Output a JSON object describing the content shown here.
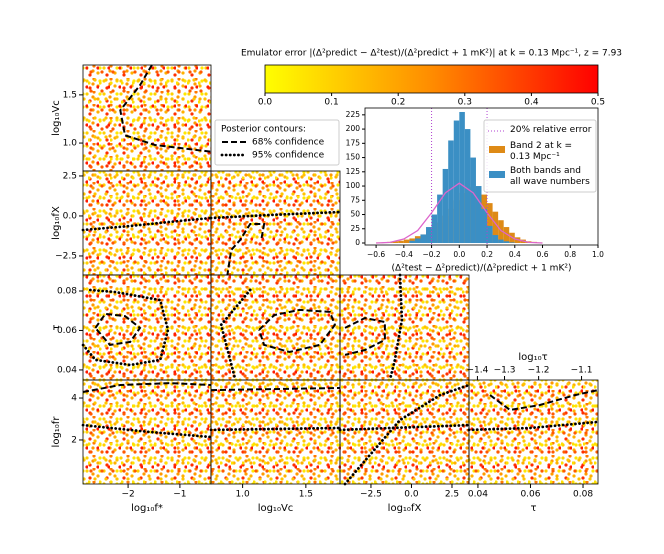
{
  "chart_data": [
    {
      "type": "corner",
      "parameters": [
        {
          "label": "log₁₀f*",
          "xlim": [
            -2.87,
            -0.4
          ],
          "xticks": [
            {
              "value": -2,
              "label": "−2"
            },
            {
              "value": -1,
              "label": "−1"
            }
          ]
        },
        {
          "label": "log₁₀Vc",
          "xlim": [
            0.75,
            1.77
          ],
          "xticks": [
            {
              "value": 1,
              "label": "1.0"
            },
            1.5
          ],
          "ylim": [
            0.71,
            1.81
          ],
          "yticks": [
            {
              "value": 1,
              "label": "1.0"
            },
            1.5
          ]
        },
        {
          "label": "log₁₀fX",
          "xlim": [
            -4.41,
            3.55
          ],
          "xticks": [
            {
              "value": -2.5,
              "label": "−2.5"
            },
            {
              "value": 0,
              "label": "0.0"
            },
            2.5
          ],
          "ylim": [
            -3.69,
            2.81
          ],
          "yticks": [
            {
              "value": -2.5,
              "label": "−2.5"
            },
            {
              "value": 0,
              "label": "0.0"
            },
            2.5
          ]
        },
        {
          "label": "τ",
          "xlim": [
            0.0366,
            0.0857
          ],
          "xticks": [
            0.04,
            0.06,
            0.08
          ],
          "ylim": [
            0.0349,
            0.0881
          ],
          "yticks": [
            0.04,
            0.06,
            0.08
          ]
        },
        {
          "label": "log₁₀fr",
          "ylim": [
            -0.1,
            4.86
          ],
          "yticks": [
            2,
            4
          ]
        }
      ],
      "panels": [
        {
          "x_param": 0,
          "y_param": 1,
          "contours": [
            {
              "style": "dashed",
              "x": [
                -1.54,
                -1.77,
                -2.15,
                -2.06,
                -1.48,
                -0.71,
                -0.4
              ],
              "y": [
                1.81,
                1.6,
                1.34,
                1.08,
                0.98,
                0.93,
                0.91
              ]
            }
          ]
        },
        {
          "x_param": 0,
          "y_param": 2,
          "contours": [
            {
              "style": "dotted",
              "x": [
                -2.87,
                -1.96,
                -1,
                -0.4
              ],
              "y": [
                -0.88,
                -0.63,
                -0.31,
                -0.13
              ]
            }
          ]
        },
        {
          "x_param": 1,
          "y_param": 2,
          "contours": [
            {
              "style": "dotted",
              "x": [
                0.75,
                1.21,
                1.77
              ],
              "y": [
                -0.13,
                0.06,
                0.25
              ]
            },
            {
              "style": "dashed",
              "x": [
                1.15,
                1.17,
                1.06,
                0.98,
                0.91,
                0.88
              ],
              "y": [
                -1.38,
                -0.5,
                -0.5,
                -1.5,
                -2.13,
                -3.69
              ]
            }
          ]
        },
        {
          "x_param": 0,
          "y_param": 3,
          "contours": [
            {
              "style": "dashed",
              "x": [
                -2.63,
                -2.44,
                -2.06,
                -1.77,
                -1.96,
                -2.35,
                -2.63
              ],
              "y": [
                0.0613,
                0.0684,
                0.0673,
                0.0613,
                0.0542,
                0.0527,
                0.0613
              ]
            },
            {
              "style": "dotted",
              "x": [
                -2.73,
                -2.25,
                -1.38,
                -1.23,
                -1.38,
                -1.96,
                -2.63,
                -2.87
              ],
              "y": [
                0.0805,
                0.0795,
                0.0754,
                0.0603,
                0.0451,
                0.0425,
                0.0451,
                0.0527
              ]
            }
          ]
        },
        {
          "x_param": 1,
          "y_param": 3,
          "contours": [
            {
              "style": "dashed",
              "x": [
                1.13,
                1.25,
                1.45,
                1.69,
                1.73,
                1.61,
                1.37,
                1.17,
                1.13
              ],
              "y": [
                0.0603,
                0.0678,
                0.0704,
                0.0694,
                0.0628,
                0.0527,
                0.0491,
                0.0527,
                0.0603
              ]
            },
            {
              "style": "dotted",
              "x": [
                1.06,
                0.83,
                0.94
              ],
              "y": [
                0.0805,
                0.0628,
                0.0356
              ]
            }
          ]
        },
        {
          "x_param": 2,
          "y_param": 3,
          "contours": [
            {
              "style": "dashed",
              "x": [
                -4.1,
                -2.87,
                -1.64,
                -1.64,
                -2.87,
                -4.1
              ],
              "y": [
                0.0613,
                0.0663,
                0.0643,
                0.0552,
                0.0501,
                0.0476
              ]
            },
            {
              "style": "dotted",
              "x": [
                -0.71,
                -0.59,
                -1.02,
                -1.33
              ],
              "y": [
                0.0881,
                0.0653,
                0.0451,
                0.0349
              ]
            }
          ]
        },
        {
          "x_param": 0,
          "y_param": 4,
          "contours": [
            {
              "style": "dotted",
              "x": [
                -2.87,
                -1.58,
                -0.4
              ],
              "y": [
                2.71,
                2.38,
                2.14
              ]
            },
            {
              "style": "dashed",
              "x": [
                -2.87,
                -2.15,
                -1.19,
                -0.4
              ],
              "y": [
                4.29,
                4.62,
                4.71,
                4.62
              ]
            }
          ]
        },
        {
          "x_param": 1,
          "y_param": 4,
          "contours": [
            {
              "style": "dotted",
              "x": [
                0.75,
                1.77
              ],
              "y": [
                2.48,
                2.57
              ]
            },
            {
              "style": "dashed",
              "x": [
                0.75,
                1.77
              ],
              "y": [
                4.38,
                4.48
              ]
            }
          ]
        },
        {
          "x_param": 2,
          "y_param": 4,
          "contours": [
            {
              "style": "dotted",
              "x": [
                -4.1,
                -0.71,
                1.76,
                3.55
              ],
              "y": [
                -0.1,
                2.95,
                4.14,
                4.62
              ]
            },
            {
              "style": "dotted",
              "x": [
                -4.41,
                3.55
              ],
              "y": [
                2.48,
                2.71
              ]
            }
          ]
        },
        {
          "x_param": 3,
          "y_param": 4,
          "contours": [
            {
              "style": "dotted",
              "x": [
                0.0366,
                0.0598,
                0.0857
              ],
              "y": [
                2.48,
                2.57,
                2.86
              ]
            },
            {
              "style": "dashed",
              "x": [
                0.0446,
                0.0522,
                0.0636,
                0.077,
                0.0857
              ],
              "y": [
                4.14,
                3.43,
                3.67,
                4.14,
                4.38
              ]
            }
          ]
        }
      ],
      "top_axis": {
        "label": "log₁₀τ",
        "scale": "log10",
        "ticks": [
          {
            "value": -1.4,
            "label": "−1.4"
          },
          {
            "value": -1.3,
            "label": "−1.3"
          },
          {
            "value": -1.2,
            "label": "−1.2"
          },
          {
            "value": -1.1,
            "label": "−1.1"
          }
        ]
      },
      "colorbar": {
        "title": "Emulator error |(Δ²predict − Δ²test)/(Δ²predict + 1 mK²)| at k = 0.13 Mpc⁻¹, z = 7.93",
        "lim": [
          0,
          0.5
        ],
        "ticks": [
          {
            "value": 0,
            "label": "0.0"
          },
          0.1,
          0.2,
          0.3,
          0.4,
          0.5
        ],
        "colors": [
          "#ffff00",
          "#ff8c00",
          "#ff0000"
        ]
      },
      "legend": {
        "title": "Posterior contours:",
        "entries": [
          {
            "name": "68% confidence",
            "style": "dashed"
          },
          {
            "name": "95% confidence",
            "style": "dotted"
          }
        ]
      }
    },
    {
      "type": "histogram",
      "xlabel": "(Δ²test − Δ²predict)/(Δ²predict + 1 mK²)",
      "xlim": [
        -0.68,
        1.0
      ],
      "ylim": [
        -3.5,
        237
      ],
      "xticks": [
        {
          "value": -0.6,
          "label": "−0.6"
        },
        {
          "value": -0.4,
          "label": "−0.4"
        },
        {
          "value": -0.2,
          "label": "−0.2"
        },
        {
          "value": 0,
          "label": "0.0"
        },
        0.2,
        0.4,
        0.6,
        0.8,
        {
          "value": 1,
          "label": "1.0"
        }
      ],
      "yticks": [
        0,
        25,
        50,
        75,
        100,
        125,
        150,
        175,
        200,
        225
      ],
      "reference_lines": {
        "name": "20% relative error",
        "color": "#b040d0",
        "values": [
          -0.2,
          0.2
        ]
      },
      "series": [
        {
          "name": "Band 2 at k = 0.13 Mpc⁻¹",
          "color": "#de8a16",
          "bins": [
            -0.6,
            -0.56,
            -0.52,
            -0.48,
            -0.44,
            -0.4,
            -0.36,
            -0.32,
            -0.28,
            -0.24,
            -0.2,
            -0.16,
            -0.12,
            -0.08,
            -0.04,
            0,
            0.04,
            0.08,
            0.12,
            0.16,
            0.2,
            0.24,
            0.28,
            0.32,
            0.36,
            0.4,
            0.44,
            0.48,
            0.52,
            0.56,
            0.6
          ],
          "values": [
            1,
            1,
            2,
            3,
            4,
            6,
            8,
            12,
            15,
            20,
            28,
            36,
            48,
            60,
            75,
            88,
            98,
            100,
            95,
            85,
            70,
            55,
            40,
            28,
            18,
            10,
            6,
            3,
            2,
            1
          ]
        },
        {
          "name": "Both bands and all wave numbers",
          "color": "#3b8fc4",
          "bins": [
            -0.36,
            -0.32,
            -0.28,
            -0.24,
            -0.2,
            -0.16,
            -0.12,
            -0.08,
            -0.04,
            0,
            0.04,
            0.08,
            0.12,
            0.16,
            0.2,
            0.24,
            0.28,
            0.32,
            0.36,
            0.4
          ],
          "values": [
            4,
            8,
            15,
            28,
            50,
            85,
            130,
            180,
            215,
            230,
            200,
            150,
            100,
            60,
            30,
            14,
            6,
            3,
            1
          ]
        }
      ],
      "curve": {
        "color": "#dd66cc",
        "x": [
          -0.6,
          -0.5,
          -0.4,
          -0.3,
          -0.2,
          -0.1,
          0,
          0.1,
          0.2,
          0.3,
          0.4,
          0.5,
          0.6
        ],
        "y": [
          0,
          1,
          7,
          22,
          53,
          88,
          105,
          88,
          53,
          22,
          7,
          1,
          0
        ]
      }
    }
  ]
}
